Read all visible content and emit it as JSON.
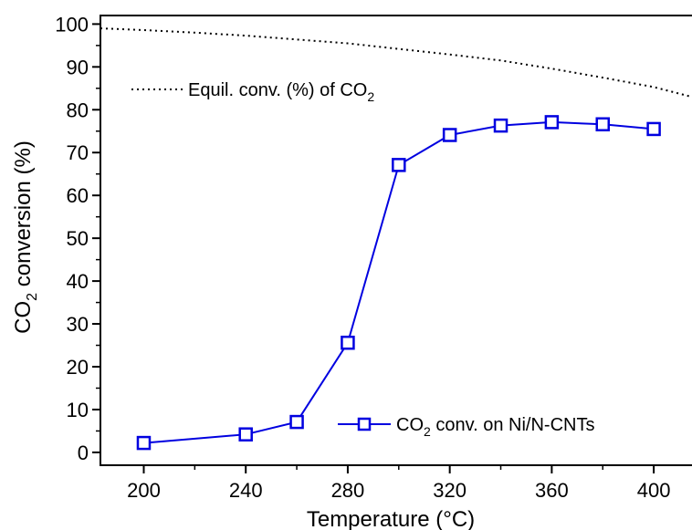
{
  "chart_data": {
    "type": "line",
    "xlabel": "Temperature (°C)",
    "ylabel_parts": [
      "CO",
      "2",
      " conversion (%)"
    ],
    "xlim": [
      183,
      415
    ],
    "ylim": [
      -3,
      102
    ],
    "x_ticks": [
      200,
      240,
      280,
      320,
      360,
      400
    ],
    "x_minor_ticks": [
      220,
      260,
      300,
      340,
      380
    ],
    "y_ticks": [
      0,
      10,
      20,
      30,
      40,
      50,
      60,
      70,
      80,
      90,
      100
    ],
    "y_minor_ticks": [
      5,
      15,
      25,
      35,
      45,
      55,
      65,
      75,
      85,
      95
    ],
    "legend_placement": [
      "top-left",
      "bottom-right"
    ],
    "series": [
      {
        "name_parts": [
          "Equil. conv. (%) of CO",
          "2"
        ],
        "style": "dotted",
        "color": "#000000",
        "x": [
          183,
          200,
          220,
          240,
          260,
          280,
          300,
          320,
          340,
          360,
          380,
          400,
          415
        ],
        "y": [
          99.0,
          98.6,
          98.0,
          97.3,
          96.4,
          95.5,
          94.2,
          92.9,
          91.5,
          89.6,
          87.5,
          85.3,
          83.0
        ]
      },
      {
        "name_parts": [
          "CO",
          "2",
          " conv. on Ni/N-CNTs"
        ],
        "style": "solid-square-markers",
        "color": "#0000e0",
        "x": [
          200,
          240,
          260,
          280,
          300,
          320,
          340,
          360,
          380,
          400
        ],
        "y": [
          2.2,
          4.2,
          7.1,
          25.6,
          67.1,
          74.1,
          76.3,
          77.1,
          76.6,
          75.5
        ]
      }
    ]
  }
}
